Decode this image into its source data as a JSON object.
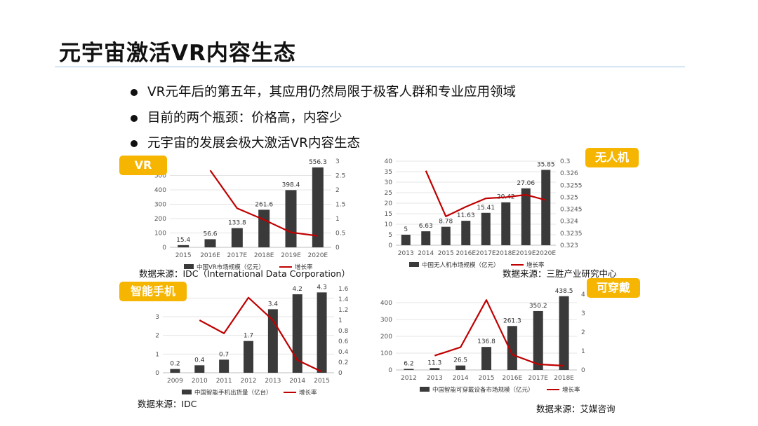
{
  "title": "元宇宙激活VR内容生态",
  "bullets": [
    "VR元年后的第五年，其应用仍然局限于极客人群和专业应用领域",
    "目前的两个瓶颈：价格高，内容少",
    "元宇宙的发展会极大激活VR内容生态"
  ],
  "colors": {
    "tag": "#f5b500",
    "bar": "#3a3a3a",
    "line": "#c00000",
    "rule": "#9ec3e3"
  },
  "chart_data": [
    {
      "type": "bar",
      "tag": "VR",
      "categories": [
        "2015",
        "2016E",
        "2017E",
        "2018E",
        "2019E",
        "2020E"
      ],
      "series": [
        {
          "name": "中国VR市场规模（亿元）",
          "values": [
            15.4,
            56.6,
            133.8,
            261.6,
            398.4,
            556.3
          ],
          "axis": "left"
        },
        {
          "name": "增长率",
          "type": "line",
          "values": [
            null,
            2.68,
            1.36,
            0.96,
            0.52,
            0.4
          ],
          "axis": "right"
        }
      ],
      "value_labels": [
        "15.4",
        "56.6",
        "133.8",
        "261.6",
        "398.4",
        "556.3"
      ],
      "y_left": {
        "ylim": [
          0,
          600
        ],
        "ticks": [
          "0",
          "100",
          "200",
          "300",
          "400",
          "500"
        ]
      },
      "y_right": {
        "ylim": [
          0,
          3
        ],
        "ticks": [
          "0",
          "0.5",
          "1",
          "1.5",
          "2",
          "2.5",
          "3"
        ]
      },
      "grid": true,
      "source": "数据来源：IDC（International Data Corporation）"
    },
    {
      "type": "bar",
      "tag": "无人机",
      "categories": [
        "2013",
        "2014",
        "2015",
        "2016E",
        "2017E",
        "2018E",
        "2019E",
        "2020E"
      ],
      "series": [
        {
          "name": "中国无人机市场规模（亿元）",
          "values": [
            5,
            6.63,
            8.78,
            11.63,
            15.41,
            20.42,
            27.06,
            35.85
          ],
          "axis": "left"
        },
        {
          "name": "增长率",
          "type": "line",
          "values": [
            null,
            0.3261,
            0.3242,
            0.3246,
            0.32495,
            0.325,
            0.3251,
            0.32488
          ],
          "axis": "right"
        }
      ],
      "value_labels": [
        "5",
        "6.63",
        "8.78",
        "11.63",
        "15.41",
        "20.42",
        "27.06",
        "35.85"
      ],
      "y_left": {
        "ylim": [
          0,
          40
        ],
        "ticks": [
          "0",
          "5",
          "10",
          "15",
          "20",
          "25",
          "30",
          "35",
          "40"
        ]
      },
      "y_right": {
        "ylim": [
          0.323,
          0.3265
        ],
        "ticks": [
          "0.323",
          "0.3235",
          "0.324",
          "0.3245",
          "0.325",
          "0.3255",
          "0.326",
          "0.3"
        ]
      },
      "grid": true,
      "source": "数据来源：三胜产业研究中心"
    },
    {
      "type": "bar",
      "tag": "智能手机",
      "categories": [
        "2009",
        "2010",
        "2011",
        "2012",
        "2013",
        "2014",
        "2015"
      ],
      "series": [
        {
          "name": "中国智能手机出货量（亿台）",
          "values": [
            0.2,
            0.4,
            0.7,
            1.7,
            3.4,
            4.2,
            4.3
          ],
          "axis": "left"
        },
        {
          "name": "增长率",
          "type": "line",
          "values": [
            null,
            1.0,
            0.75,
            1.43,
            1.0,
            0.24,
            0.02
          ],
          "axis": "right"
        }
      ],
      "value_labels": [
        "0.2",
        "0.4",
        "0.7",
        "1.7",
        "3.4",
        "4.2",
        "4.3"
      ],
      "y_left": {
        "ylim": [
          0,
          4.5
        ],
        "ticks": [
          "0",
          "1",
          "2",
          "3",
          "4"
        ]
      },
      "y_right": {
        "ylim": [
          0,
          1.6
        ],
        "ticks": [
          "0",
          "0.2",
          "0.4",
          "0.6",
          "0.8",
          "1",
          "1.2",
          "1.4",
          "1.6"
        ]
      },
      "grid": true,
      "source": "数据来源：IDC"
    },
    {
      "type": "bar",
      "tag": "可穿戴",
      "categories": [
        "2012",
        "2013",
        "2014",
        "2015",
        "2016E",
        "2017E",
        "2018E"
      ],
      "series": [
        {
          "name": "中国智能可穿戴设备市场规模（亿元）",
          "values": [
            6.2,
            11.3,
            26.5,
            136.8,
            261.3,
            350.2,
            438.5
          ],
          "axis": "left"
        },
        {
          "name": "增长率",
          "type": "line",
          "values": [
            null,
            0.85,
            1.35,
            4.16,
            0.91,
            0.34,
            0.25
          ],
          "axis": "right"
        }
      ],
      "value_labels": [
        "6.2",
        "11.3",
        "26.5",
        "136.8",
        "261.3",
        "350.2",
        "438.5"
      ],
      "y_left": {
        "ylim": [
          0,
          450
        ],
        "ticks": [
          "0",
          "100",
          "200",
          "300",
          "400"
        ]
      },
      "y_right": {
        "ylim": [
          0,
          4.5
        ],
        "ticks": [
          "0",
          "1",
          "2",
          "3",
          "4"
        ]
      },
      "grid": true,
      "source": "数据来源：艾媒咨询"
    }
  ]
}
